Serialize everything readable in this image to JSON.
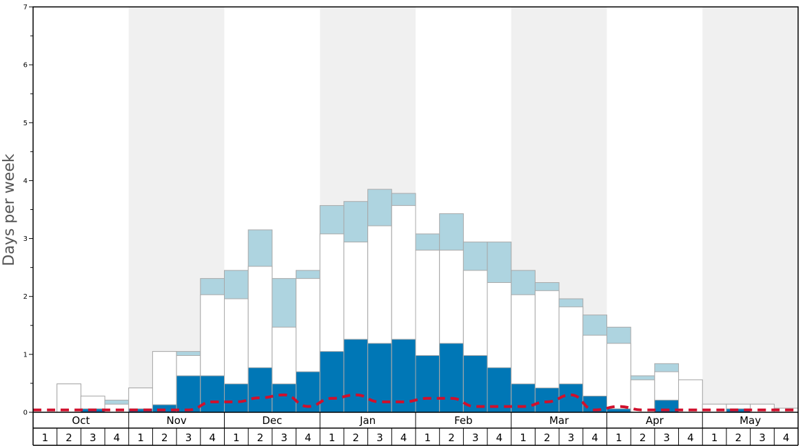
{
  "chart_data": {
    "type": "bar",
    "ylabel": "Days per week",
    "ylim": [
      0,
      7
    ],
    "y_ticks": [
      "0",
      "1",
      "2",
      "3",
      "4",
      "5",
      "6",
      "7"
    ],
    "months": [
      {
        "label": "Oct",
        "shaded": false
      },
      {
        "label": "Nov",
        "shaded": true
      },
      {
        "label": "Dec",
        "shaded": false
      },
      {
        "label": "Jan",
        "shaded": true
      },
      {
        "label": "Feb",
        "shaded": false
      },
      {
        "label": "Mar",
        "shaded": true
      },
      {
        "label": "Apr",
        "shaded": false
      },
      {
        "label": "May",
        "shaded": true
      }
    ],
    "weeks": [
      "1",
      "2",
      "3",
      "4"
    ],
    "series": [
      {
        "color": "#0077b6",
        "values": [
          0,
          0,
          0.06,
          0,
          0.06,
          0.13,
          0.63,
          0.63,
          0.49,
          0.77,
          0.49,
          0.7,
          1.05,
          1.26,
          1.19,
          1.26,
          0.98,
          1.19,
          0.98,
          0.77,
          0.49,
          0.42,
          0.49,
          0.28,
          0.06,
          0,
          0.21,
          0,
          0,
          0.06,
          0,
          0
        ]
      },
      {
        "color": "#ffffff",
        "values": [
          0,
          0.49,
          0.28,
          0.14,
          0.42,
          1.05,
          0.98,
          2.03,
          1.96,
          2.52,
          1.47,
          2.31,
          3.08,
          2.94,
          3.22,
          3.57,
          2.8,
          2.8,
          2.45,
          2.24,
          2.03,
          2.1,
          1.82,
          1.33,
          1.19,
          0.56,
          0.7,
          0.56,
          0.14,
          0.14,
          0.14,
          0.07
        ]
      },
      {
        "color": "#aed4e0",
        "values": [
          0,
          0.49,
          0.28,
          0.21,
          0.42,
          1.05,
          1.05,
          2.31,
          2.45,
          3.15,
          2.31,
          2.45,
          3.57,
          3.64,
          3.85,
          3.78,
          3.08,
          3.43,
          2.94,
          2.94,
          2.45,
          2.24,
          1.96,
          1.68,
          1.47,
          0.63,
          0.84,
          0.56,
          0.14,
          0.14,
          0.14,
          0.07
        ]
      }
    ],
    "line": {
      "color": "#d0102c",
      "values": [
        0.04,
        0.04,
        0.04,
        0.04,
        0.04,
        0.04,
        0.04,
        0.18,
        0.18,
        0.25,
        0.3,
        0.1,
        0.24,
        0.3,
        0.18,
        0.18,
        0.24,
        0.24,
        0.1,
        0.1,
        0.1,
        0.18,
        0.3,
        0.04,
        0.1,
        0.04,
        0.04,
        0.04,
        0.04,
        0.04,
        0.04,
        0.04
      ]
    }
  }
}
